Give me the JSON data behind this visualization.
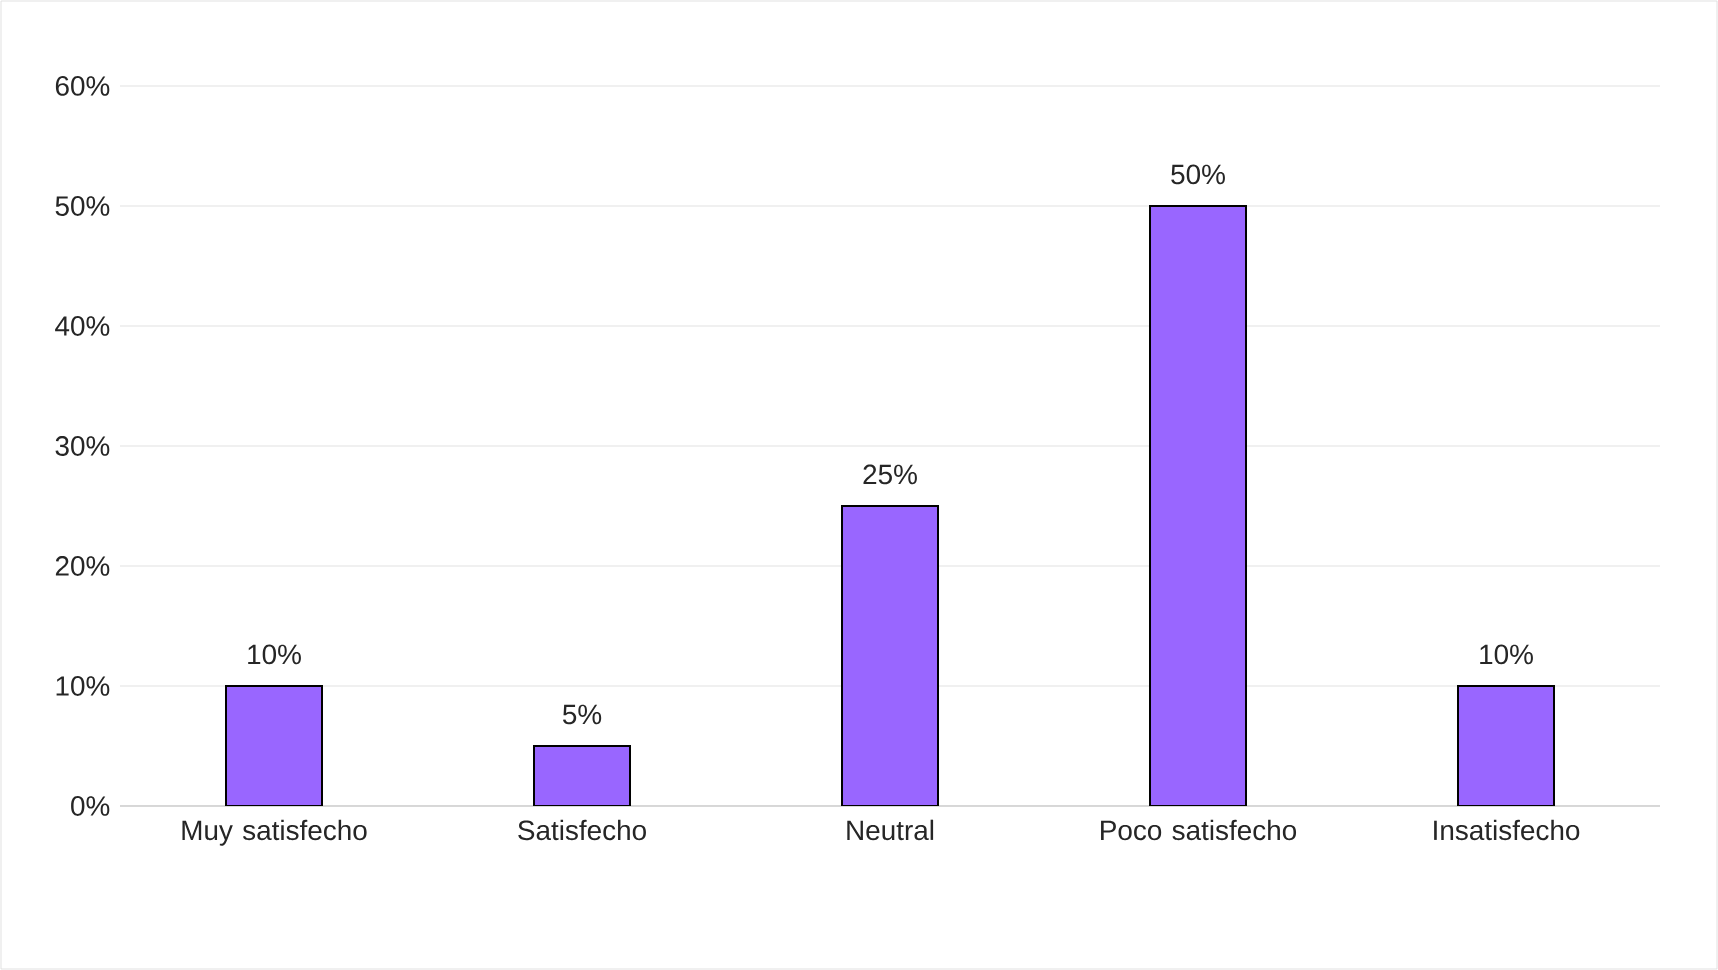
{
  "chart_data": {
    "type": "bar",
    "categories": [
      "Muy satisfecho",
      "Satisfecho",
      "Neutral",
      "Poco satisfecho",
      "Insatisfecho"
    ],
    "values": [
      10,
      5,
      25,
      50,
      10
    ],
    "value_labels": [
      "10%",
      "5%",
      "25%",
      "50%",
      "10%"
    ],
    "color": "#9966ff",
    "ylim": [
      0,
      60
    ],
    "yticks": [
      {
        "value": 0,
        "label": "0%"
      },
      {
        "value": 10,
        "label": "10%"
      },
      {
        "value": 20,
        "label": "20%"
      },
      {
        "value": 30,
        "label": "30%"
      },
      {
        "value": 40,
        "label": "40%"
      },
      {
        "value": 50,
        "label": "50%"
      },
      {
        "value": 60,
        "label": "60%"
      }
    ],
    "grid": "y"
  }
}
